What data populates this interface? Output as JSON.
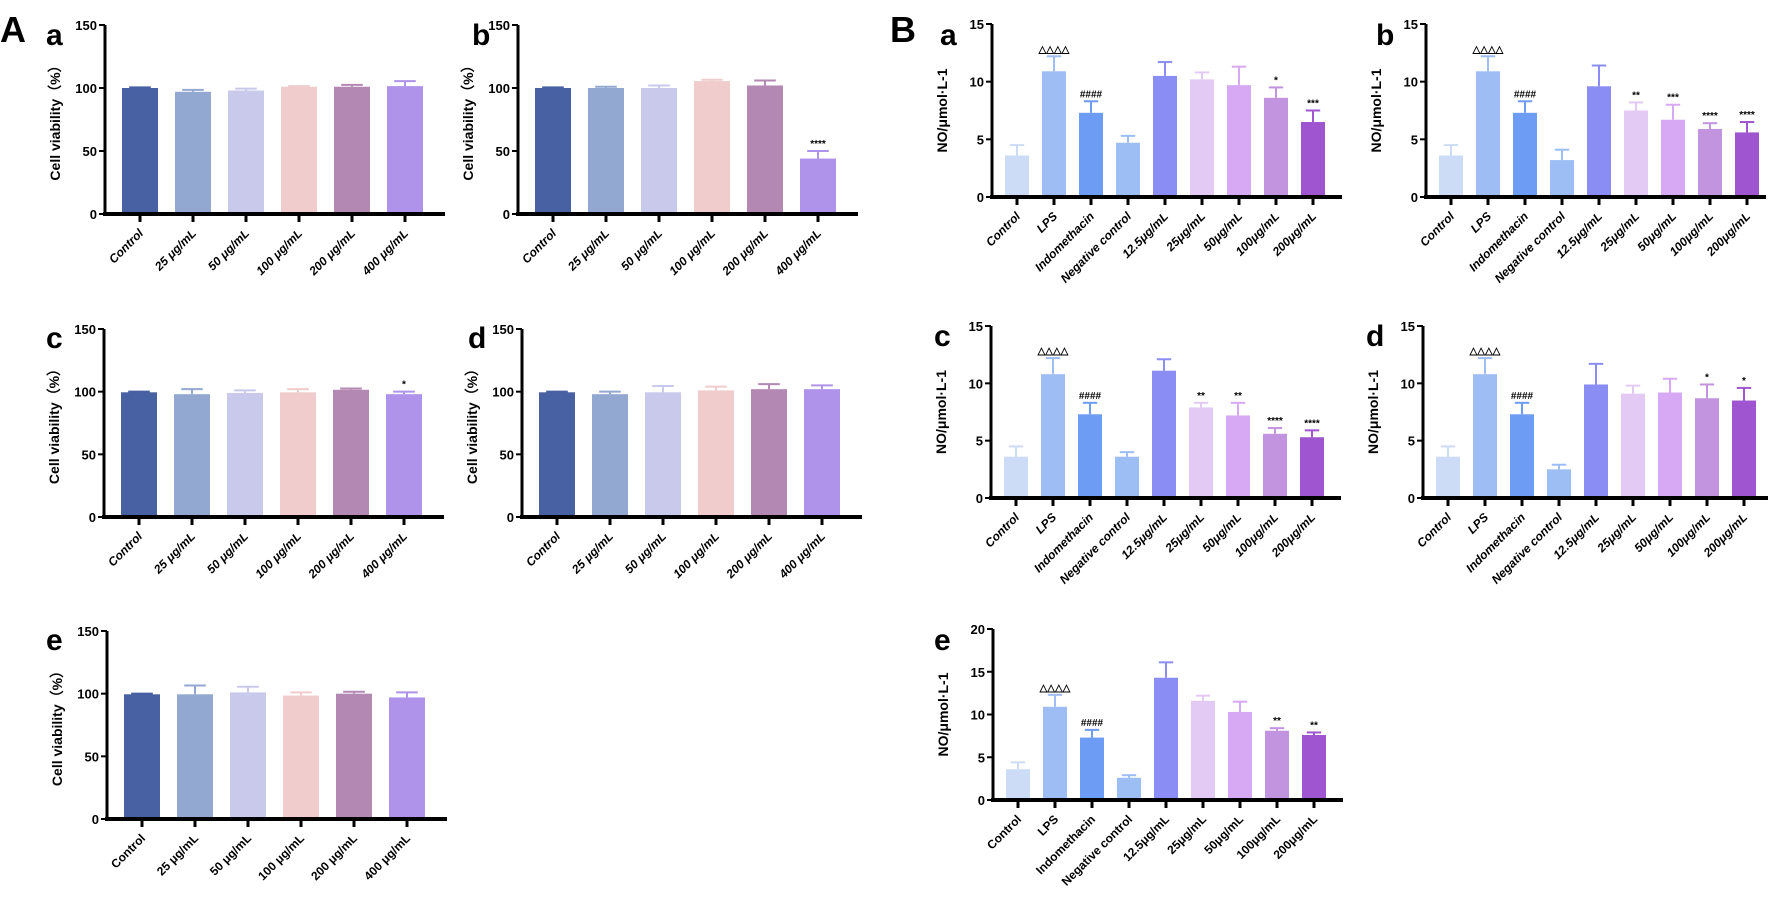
{
  "figure": {
    "section_labels": [
      "A",
      "B"
    ]
  },
  "colors": {
    "A": [
      "#4861a3",
      "#93a8d1",
      "#c9c9ec",
      "#f0cccc",
      "#b389b3",
      "#af92ea"
    ],
    "B": [
      "#ccdcf6",
      "#9ebdf5",
      "#6d9cf4",
      "#9dbdf5",
      "#8a8ef4",
      "#e3caf5",
      "#d7a9f4",
      "#c293df",
      "#9f55d0"
    ]
  },
  "chart_data": [
    {
      "id": "A-a",
      "panel": "a",
      "type": "bar",
      "ylabel": "Cell viability（%）",
      "ylim": [
        0,
        150
      ],
      "yticks": [
        0,
        50,
        100,
        150
      ],
      "categories": [
        "Control",
        "25 μg/mL",
        "50 μg/mL",
        "100 μg/mL",
        "200 μg/mL",
        "400 μg/mL"
      ],
      "values": [
        100,
        97,
        98,
        101,
        101,
        101.5
      ],
      "errors": [
        0.5,
        1.5,
        1.5,
        0.5,
        1.5,
        4
      ],
      "annotations": [
        "",
        "",
        "",
        "",
        "",
        ""
      ]
    },
    {
      "id": "A-b",
      "panel": "b",
      "type": "bar",
      "ylabel": "Cell viability（%）",
      "ylim": [
        0,
        150
      ],
      "yticks": [
        0,
        50,
        100,
        150
      ],
      "categories": [
        "Control",
        "25 μg/mL",
        "50 μg/mL",
        "100 μg/mL",
        "200 μg/mL",
        "400 μg/mL"
      ],
      "values": [
        100,
        100,
        100,
        105.5,
        102,
        44
      ],
      "errors": [
        0.5,
        1,
        2,
        1,
        4,
        6
      ],
      "annotations": [
        "",
        "",
        "",
        "",
        "",
        "****"
      ]
    },
    {
      "id": "A-c",
      "panel": "c",
      "type": "bar",
      "ylabel": "Cell viability（%）",
      "ylim": [
        0,
        150
      ],
      "yticks": [
        0,
        50,
        100,
        150
      ],
      "categories": [
        "Control",
        "25 μg/mL",
        "50 μg/mL",
        "100 μg/mL",
        "200 μg/mL",
        "400 μg/mL"
      ],
      "values": [
        99.5,
        98,
        99,
        99.5,
        101.5,
        98
      ],
      "errors": [
        0.5,
        4,
        2,
        2.5,
        1,
        2
      ],
      "annotations": [
        "",
        "",
        "",
        "",
        "",
        "*"
      ]
    },
    {
      "id": "A-d",
      "panel": "d",
      "type": "bar",
      "ylabel": "Cell viability（%）",
      "ylim": [
        0,
        150
      ],
      "yticks": [
        0,
        50,
        100,
        150
      ],
      "categories": [
        "Control",
        "25 μg/mL",
        "50 μg/mL",
        "100 μg/mL",
        "200 μg/mL",
        "400 μg/mL"
      ],
      "values": [
        99.5,
        98,
        99.5,
        101,
        102,
        102
      ],
      "errors": [
        0.5,
        2,
        5,
        3,
        4,
        3
      ],
      "annotations": [
        "",
        "",
        "",
        "",
        "",
        ""
      ]
    },
    {
      "id": "A-e",
      "panel": "e",
      "type": "bar",
      "ylabel": "Cell viability（%）",
      "ylim": [
        0,
        150
      ],
      "yticks": [
        0,
        50,
        100,
        150
      ],
      "categories": [
        "Control",
        "25 μg/mL",
        "50 μg/mL",
        "100 μg/mL",
        "200 μg/mL",
        "400 μg/mL"
      ],
      "values": [
        99.5,
        99.5,
        101,
        98.5,
        100,
        97
      ],
      "errors": [
        0.5,
        7,
        4.5,
        2.5,
        1.5,
        4
      ],
      "annotations": [
        "",
        "",
        "",
        "",
        "",
        ""
      ]
    },
    {
      "id": "B-a",
      "panel": "a",
      "type": "bar",
      "ylabel": "NO/μmol·L-1",
      "ylim": [
        0,
        15
      ],
      "yticks": [
        0,
        5,
        10,
        15
      ],
      "categories": [
        "Control",
        "LPS",
        "Indomethacin",
        "Negative control",
        "12.5μg/mL",
        "25μg/mL",
        "50μg/mL",
        "100μg/mL",
        "200μg/mL"
      ],
      "values": [
        3.6,
        10.9,
        7.3,
        4.7,
        10.5,
        10.2,
        9.7,
        8.6,
        6.5
      ],
      "errors": [
        0.9,
        1.3,
        1.0,
        0.6,
        1.2,
        0.6,
        1.6,
        0.9,
        1.0
      ],
      "annotations": [
        "",
        "△△△△",
        "####",
        "",
        "",
        "",
        "",
        "*",
        "***"
      ]
    },
    {
      "id": "B-b",
      "panel": "b",
      "type": "bar",
      "ylabel": "NO/μmol·L-1",
      "ylim": [
        0,
        15
      ],
      "yticks": [
        0,
        5,
        10,
        15
      ],
      "categories": [
        "Control",
        "LPS",
        "Indomethacin",
        "Negative control",
        "12.5μg/mL",
        "25μg/mL",
        "50μg/mL",
        "100μg/mL",
        "200μg/mL"
      ],
      "values": [
        3.6,
        10.9,
        7.3,
        3.2,
        9.6,
        7.5,
        6.7,
        5.9,
        5.6
      ],
      "errors": [
        0.9,
        1.3,
        1.0,
        0.9,
        1.8,
        0.7,
        1.3,
        0.5,
        0.9
      ],
      "annotations": [
        "",
        "△△△△",
        "####",
        "",
        "",
        "**",
        "***",
        "****",
        "****"
      ]
    },
    {
      "id": "B-c",
      "panel": "c",
      "type": "bar",
      "ylabel": "NO/μmol·L-1",
      "ylim": [
        0,
        15
      ],
      "yticks": [
        0,
        5,
        10,
        15
      ],
      "categories": [
        "Control",
        "LPS",
        "Indomethacin",
        "Negative control",
        "12.5μg/mL",
        "25μg/mL",
        "50μg/mL",
        "100μg/mL",
        "200μg/mL"
      ],
      "values": [
        3.6,
        10.8,
        7.3,
        3.6,
        11.1,
        7.9,
        7.2,
        5.6,
        5.3
      ],
      "errors": [
        0.9,
        1.4,
        1.0,
        0.4,
        1.0,
        0.4,
        1.1,
        0.5,
        0.6
      ],
      "annotations": [
        "",
        "△△△△",
        "####",
        "",
        "",
        "**",
        "**",
        "****",
        "****"
      ]
    },
    {
      "id": "B-d",
      "panel": "d",
      "type": "bar",
      "ylabel": "NO/μmol·L-1",
      "ylim": [
        0,
        15
      ],
      "yticks": [
        0,
        5,
        10,
        15
      ],
      "categories": [
        "Control",
        "LPS",
        "Indomethacin",
        "Negative control",
        "12.5μg/mL",
        "25μg/mL",
        "50μg/mL",
        "100μg/mL",
        "200μg/mL"
      ],
      "values": [
        3.6,
        10.8,
        7.3,
        2.5,
        9.9,
        9.1,
        9.2,
        8.7,
        8.5
      ],
      "errors": [
        0.9,
        1.4,
        1.0,
        0.4,
        1.8,
        0.7,
        1.2,
        1.2,
        1.1
      ],
      "annotations": [
        "",
        "△△△△",
        "####",
        "",
        "",
        "",
        "",
        "*",
        "*"
      ]
    },
    {
      "id": "B-e",
      "panel": "e",
      "type": "bar",
      "ylabel": "NO/μmol·L-1",
      "ylim": [
        0,
        20
      ],
      "yticks": [
        0,
        5,
        10,
        15,
        20
      ],
      "categories": [
        "Control",
        "LPS",
        "Indomethacin",
        "Negative control",
        "12.5μg/mL",
        "25μg/mL",
        "50μg/mL",
        "100μg/mL",
        "200μg/mL"
      ],
      "values": [
        3.6,
        10.9,
        7.3,
        2.6,
        14.3,
        11.6,
        10.3,
        8.1,
        7.6
      ],
      "errors": [
        0.8,
        1.4,
        0.9,
        0.3,
        1.8,
        0.6,
        1.2,
        0.3,
        0.3
      ],
      "annotations": [
        "",
        "△△△△",
        "####",
        "",
        "",
        "",
        "",
        "**",
        "**"
      ]
    }
  ]
}
